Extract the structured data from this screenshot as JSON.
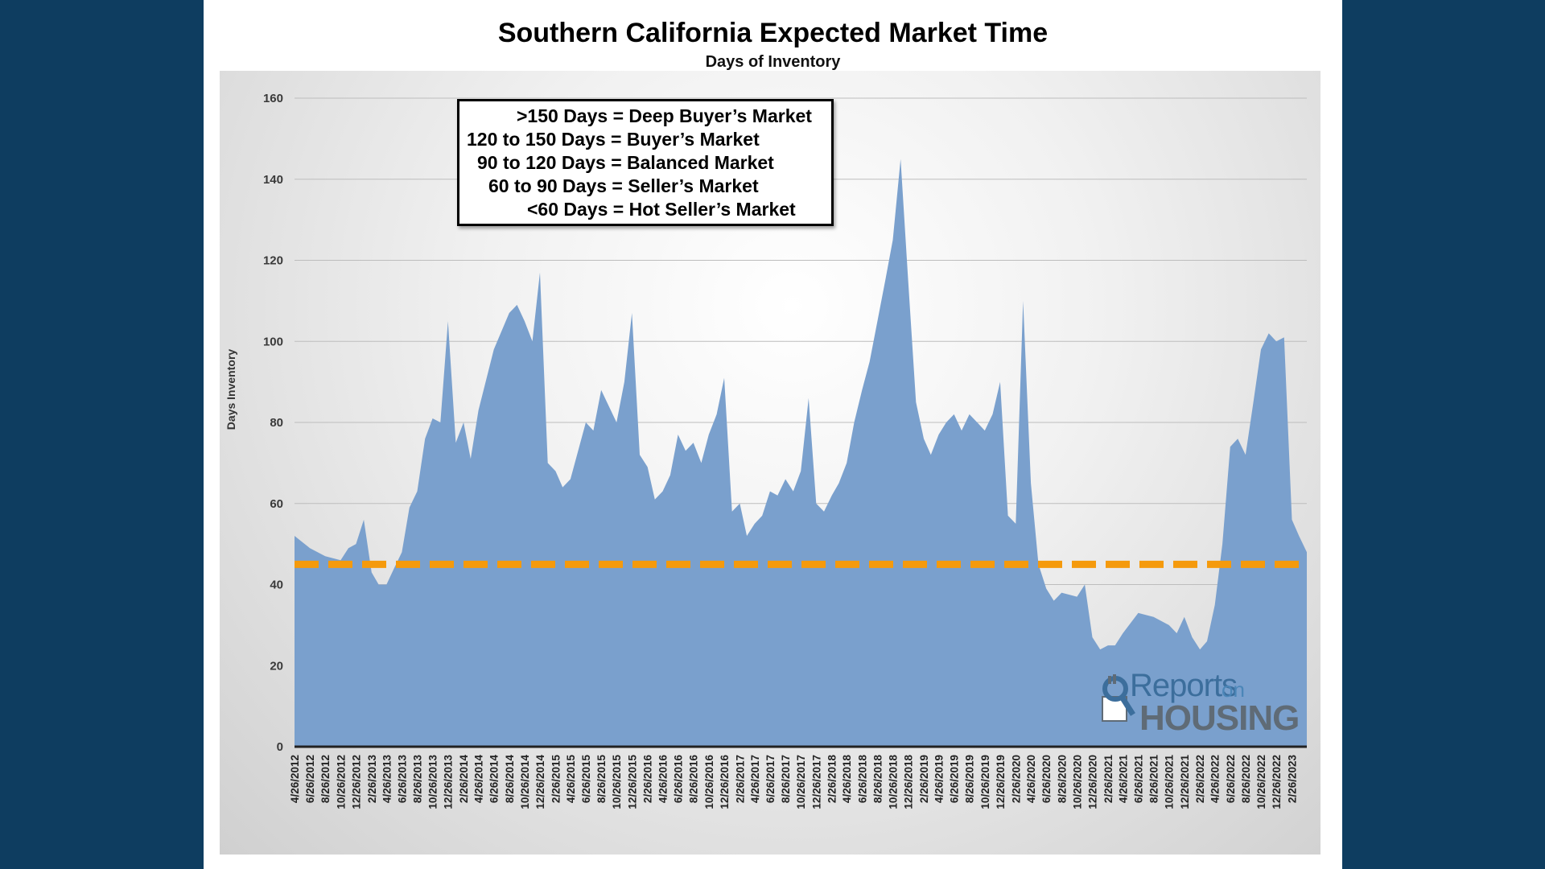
{
  "chart_data": {
    "type": "area",
    "title": "Southern California Expected Market Time",
    "subtitle": "Days of Inventory",
    "ylabel": "Days Inventory",
    "xlabel": "",
    "ylim": [
      0,
      160
    ],
    "yticks": [
      0,
      20,
      40,
      60,
      80,
      100,
      120,
      140,
      160
    ],
    "grid": true,
    "colors": {
      "area": "#7aa0cd",
      "reference_line": "#f59a0c",
      "axis": "#222222"
    },
    "reference_line": {
      "y": 45,
      "style": "dashed"
    },
    "x_tick_labels": [
      "4/26/2012",
      "6/26/2012",
      "8/26/2012",
      "10/26/2012",
      "12/26/2012",
      "2/26/2013",
      "4/26/2013",
      "6/26/2013",
      "8/26/2013",
      "10/26/2013",
      "12/26/2013",
      "2/26/2014",
      "4/26/2014",
      "6/26/2014",
      "8/26/2014",
      "10/26/2014",
      "12/26/2014",
      "2/26/2015",
      "4/26/2015",
      "6/26/2015",
      "8/26/2015",
      "10/26/2015",
      "12/26/2015",
      "2/26/2016",
      "4/26/2016",
      "6/26/2016",
      "8/26/2016",
      "10/26/2016",
      "12/26/2016",
      "2/26/2017",
      "4/26/2017",
      "6/26/2017",
      "8/26/2017",
      "10/26/2017",
      "12/26/2017",
      "2/26/2018",
      "4/26/2018",
      "6/26/2018",
      "8/26/2018",
      "10/26/2018",
      "12/26/2018",
      "2/26/2019",
      "4/26/2019",
      "6/26/2019",
      "8/26/2019",
      "10/26/2019",
      "12/26/2019",
      "2/26/2020",
      "4/26/2020",
      "6/26/2020",
      "8/26/2020",
      "10/26/2020",
      "12/26/2020",
      "2/26/2021",
      "4/26/2021",
      "6/26/2021",
      "8/26/2021",
      "10/26/2021",
      "12/26/2021",
      "2/26/2022",
      "4/26/2022",
      "6/26/2022",
      "8/26/2022",
      "10/26/2022",
      "12/26/2022",
      "2/26/2023"
    ],
    "series": [
      {
        "x": [
          "4/26/2012",
          "6/26/2012",
          "8/26/2012",
          "10/26/2012",
          "11/26/2012",
          "12/26/2012",
          "1/26/2013",
          "2/26/2013",
          "3/26/2013",
          "4/26/2013",
          "5/26/2013",
          "6/26/2013",
          "7/26/2013",
          "8/26/2013",
          "9/26/2013",
          "10/26/2013",
          "11/26/2013",
          "12/26/2013",
          "1/26/2014",
          "2/26/2014",
          "3/26/2014",
          "4/26/2014",
          "6/26/2014",
          "8/26/2014",
          "9/26/2014",
          "10/26/2014",
          "11/26/2014",
          "12/26/2014",
          "1/26/2015",
          "2/26/2015",
          "3/26/2015",
          "4/26/2015",
          "6/26/2015",
          "7/26/2015",
          "8/26/2015",
          "10/26/2015",
          "11/26/2015",
          "12/26/2015",
          "1/26/2016",
          "2/26/2016",
          "3/26/2016",
          "4/26/2016",
          "5/26/2016",
          "6/26/2016",
          "7/26/2016",
          "8/26/2016",
          "9/26/2016",
          "10/26/2016",
          "11/26/2016",
          "12/26/2016",
          "1/26/2017",
          "2/26/2017",
          "3/26/2017",
          "4/26/2017",
          "5/26/2017",
          "6/26/2017",
          "7/26/2017",
          "8/26/2017",
          "9/26/2017",
          "10/26/2017",
          "11/26/2017",
          "12/26/2017",
          "1/26/2018",
          "2/26/2018",
          "3/26/2018",
          "4/26/2018",
          "5/26/2018",
          "6/26/2018",
          "7/26/2018",
          "8/26/2018",
          "9/26/2018",
          "10/26/2018",
          "11/26/2018",
          "12/26/2018",
          "1/26/2019",
          "2/26/2019",
          "3/26/2019",
          "4/26/2019",
          "5/26/2019",
          "6/26/2019",
          "7/26/2019",
          "8/26/2019",
          "9/26/2019",
          "10/26/2019",
          "11/26/2019",
          "12/26/2019",
          "1/26/2020",
          "2/26/2020",
          "3/26/2020",
          "4/26/2020",
          "5/26/2020",
          "6/26/2020",
          "7/26/2020",
          "8/26/2020",
          "10/26/2020",
          "11/26/2020",
          "12/26/2020",
          "1/26/2021",
          "2/26/2021",
          "3/26/2021",
          "4/26/2021",
          "6/26/2021",
          "8/26/2021",
          "10/26/2021",
          "11/26/2021",
          "12/26/2021",
          "1/26/2022",
          "2/26/2022",
          "3/26/2022",
          "4/26/2022",
          "5/26/2022",
          "6/26/2022",
          "7/26/2022",
          "8/26/2022",
          "9/26/2022",
          "10/26/2022",
          "11/26/2022",
          "12/26/2022",
          "1/26/2023",
          "2/26/2023",
          "3/26/2023",
          "4/26/2023"
        ],
        "values": [
          52,
          49,
          47,
          46,
          49,
          50,
          56,
          43,
          40,
          40,
          44,
          48,
          59,
          63,
          76,
          81,
          80,
          105,
          75,
          80,
          71,
          83,
          98,
          107,
          109,
          105,
          100,
          117,
          70,
          68,
          64,
          66,
          80,
          78,
          88,
          80,
          90,
          107,
          72,
          69,
          61,
          63,
          67,
          77,
          73,
          75,
          70,
          77,
          82,
          91,
          58,
          60,
          52,
          55,
          57,
          63,
          62,
          66,
          63,
          68,
          86,
          60,
          58,
          62,
          65,
          70,
          80,
          88,
          95,
          105,
          115,
          125,
          145,
          115,
          85,
          76,
          72,
          77,
          80,
          82,
          78,
          82,
          80,
          78,
          82,
          90,
          57,
          55,
          110,
          65,
          45,
          39,
          36,
          38,
          37,
          40,
          27,
          24,
          25,
          25,
          28,
          33,
          32,
          30,
          28,
          32,
          27,
          24,
          26,
          35,
          50,
          74,
          76,
          72,
          85,
          98,
          102,
          100,
          101,
          56,
          52,
          48
        ]
      }
    ]
  },
  "legend_box": {
    "lines": [
      ">150 Days = Deep Buyer’s Market",
      "120 to 150 Days = Buyer’s Market",
      "90 to 120 Days = Balanced Market",
      "60 to 90 Days = Seller’s Market",
      "<60 Days = Hot Seller’s Market"
    ]
  },
  "logo": {
    "text_reports": "Reports",
    "text_on": "on",
    "text_housing": "HOUSING"
  }
}
